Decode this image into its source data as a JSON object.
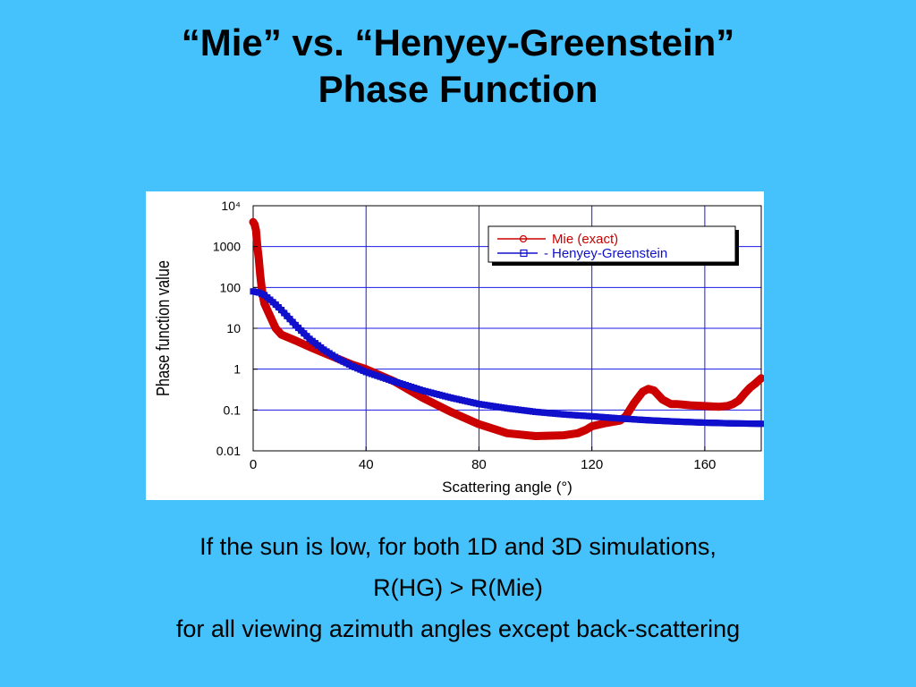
{
  "slide": {
    "title_line1": "“Mie” vs. “Henyey-Greenstein”",
    "title_line2": "Phase Function",
    "caption_line1": "If the sun is low, for both 1D and 3D simulations,",
    "caption_line2": "R(HG) > R(Mie)",
    "caption_line3": "for all viewing azimuth angles except back-scattering"
  },
  "colors": {
    "background": "#45c2fb",
    "mie": "#cc0000",
    "hg": "#1010cc",
    "grid": "#1a1ae6"
  },
  "chart_data": {
    "type": "line",
    "title": "",
    "xlabel": "Scattering angle (°)",
    "ylabel": "Phase function value",
    "xlim": [
      0,
      180
    ],
    "ylim": [
      0.01,
      10000
    ],
    "yscale": "log",
    "grid": true,
    "legend_position": "top-right",
    "x_ticks": [
      0,
      40,
      80,
      120,
      160
    ],
    "x_tick_labels": [
      "0",
      "40",
      "80",
      "120",
      "160"
    ],
    "y_ticks": [
      10000,
      1000,
      100,
      10,
      1,
      0.1,
      0.01
    ],
    "y_tick_labels": [
      "10⁴",
      "1000",
      "100",
      "10",
      "1",
      "0.1",
      "0.01"
    ],
    "series": [
      {
        "name": "Mie (exact)",
        "marker": "circle",
        "x": [
          0,
          0.5,
          1,
          1.5,
          2,
          2.5,
          3,
          3.5,
          4,
          6,
          8,
          10,
          15,
          20,
          25,
          30,
          35,
          40,
          50,
          60,
          70,
          80,
          90,
          100,
          110,
          115,
          118,
          120,
          125,
          130,
          132,
          135,
          138,
          140,
          142,
          145,
          148,
          150,
          155,
          160,
          165,
          168,
          170,
          172,
          174,
          176,
          178,
          180
        ],
        "y": [
          4000,
          3500,
          2500,
          1000,
          500,
          200,
          100,
          60,
          40,
          20,
          10,
          7,
          5,
          3.5,
          2.5,
          1.8,
          1.3,
          1,
          0.5,
          0.2,
          0.09,
          0.045,
          0.027,
          0.023,
          0.024,
          0.027,
          0.033,
          0.04,
          0.048,
          0.055,
          0.07,
          0.15,
          0.28,
          0.33,
          0.3,
          0.18,
          0.14,
          0.14,
          0.13,
          0.125,
          0.12,
          0.125,
          0.14,
          0.17,
          0.25,
          0.35,
          0.45,
          0.6
        ]
      },
      {
        "name": "Henyey-Greenstein",
        "marker": "square",
        "x": [
          0,
          2,
          4,
          6,
          8,
          10,
          15,
          20,
          25,
          30,
          35,
          40,
          50,
          60,
          70,
          80,
          90,
          100,
          110,
          120,
          130,
          140,
          150,
          160,
          170,
          180
        ],
        "y": [
          80,
          75,
          65,
          50,
          38,
          28,
          12,
          5.5,
          3,
          1.8,
          1.2,
          0.85,
          0.5,
          0.3,
          0.2,
          0.14,
          0.11,
          0.09,
          0.078,
          0.07,
          0.062,
          0.056,
          0.052,
          0.049,
          0.047,
          0.046
        ]
      }
    ]
  }
}
